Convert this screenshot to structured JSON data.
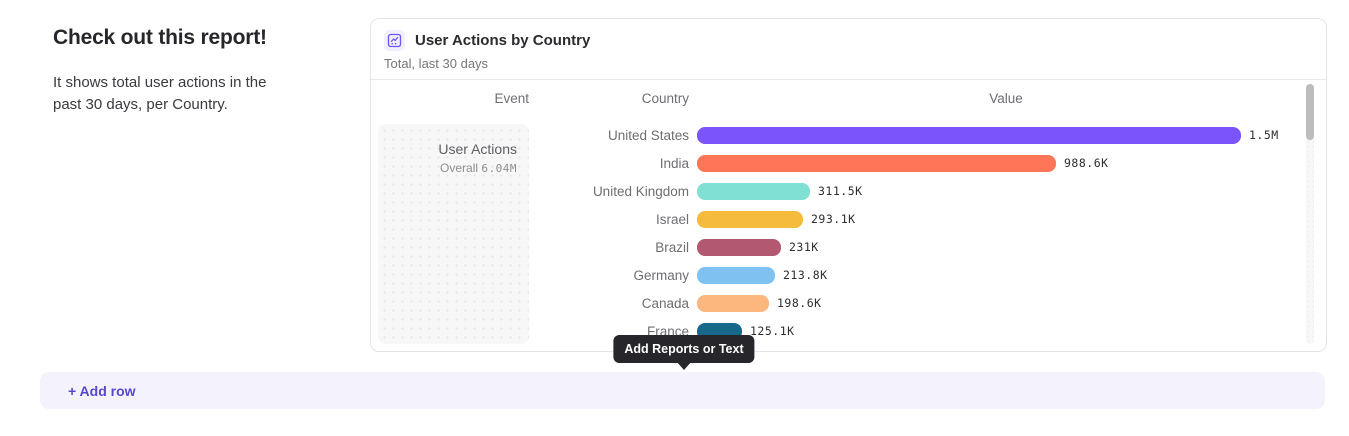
{
  "intro": {
    "title": "Check out this report!",
    "body": "It shows total user actions in the past 30 days, per Country."
  },
  "card": {
    "title": "User Actions by Country",
    "subtitle": "Total, last 30 days",
    "icon": "line-chart-icon",
    "accent_color": "#6e56f8"
  },
  "chart_data": {
    "type": "bar",
    "title": "User Actions by Country",
    "subtitle": "Total, last 30 days",
    "orientation": "horizontal",
    "columns": {
      "event": "Event",
      "country": "Country",
      "value": "Value"
    },
    "event": {
      "name": "User Actions",
      "overall_label": "Overall",
      "overall_value": "6.04M"
    },
    "categories": [
      "United States",
      "India",
      "United Kingdom",
      "Israel",
      "Brazil",
      "Germany",
      "Canada",
      "France"
    ],
    "values": [
      1500000,
      988600,
      311500,
      293100,
      231000,
      213800,
      198600,
      125100
    ],
    "value_labels": [
      "1.5M",
      "988.6K",
      "311.5K",
      "293.1K",
      "231K",
      "213.8K",
      "198.6K",
      "125.1K"
    ],
    "bar_colors": [
      "#7b55fb",
      "#ff7557",
      "#80e0d3",
      "#f5bb3c",
      "#b25971",
      "#7fc2f2",
      "#fcb77e",
      "#16698a"
    ],
    "xmax": 1500000,
    "legend": "none",
    "grid": false
  },
  "tooltip": {
    "label": "Add Reports or Text"
  },
  "add_row": {
    "label": "+ Add row"
  }
}
